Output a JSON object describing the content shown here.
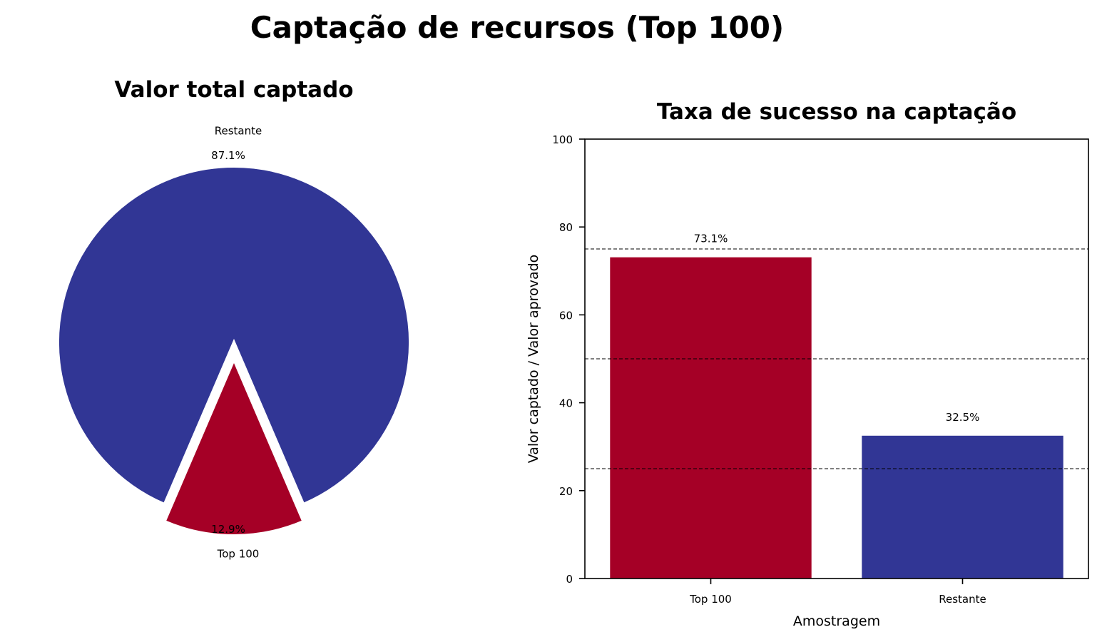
{
  "figure": {
    "title": "Captação de recursos (Top 100)"
  },
  "chart_data": [
    {
      "type": "pie",
      "title": "Valor total captado",
      "labels": [
        "Top 100",
        "Restante"
      ],
      "values": [
        12.9,
        87.1
      ],
      "value_labels": [
        "12.9%",
        "87.1%"
      ],
      "colors": [
        "#a50026",
        "#313695"
      ],
      "exploded": [
        "Top 100"
      ]
    },
    {
      "type": "bar",
      "title": "Taxa de sucesso na captação",
      "xlabel": "Amostragem",
      "ylabel": "Valor captado / Valor aprovado",
      "categories": [
        "Top 100",
        "Restante"
      ],
      "values": [
        73.1,
        32.5
      ],
      "value_labels": [
        "73.1%",
        "32.5%"
      ],
      "colors": [
        "#a50026",
        "#313695"
      ],
      "ylim": [
        0,
        100
      ],
      "yticks": [
        0,
        20,
        40,
        60,
        80,
        100
      ],
      "reference_lines": [
        25,
        50,
        75
      ],
      "grid": false
    }
  ]
}
